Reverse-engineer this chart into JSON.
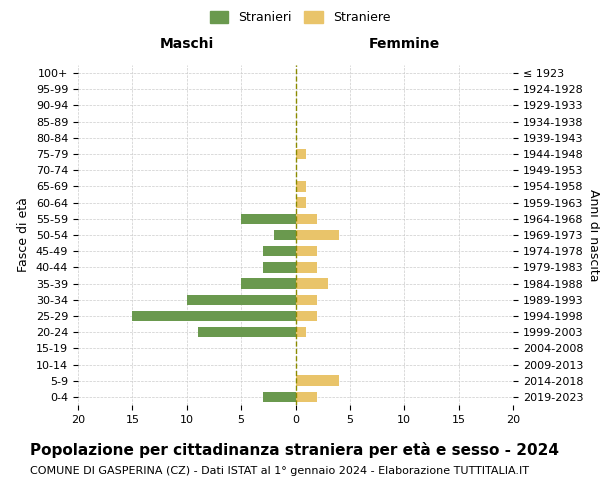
{
  "age_groups": [
    "0-4",
    "5-9",
    "10-14",
    "15-19",
    "20-24",
    "25-29",
    "30-34",
    "35-39",
    "40-44",
    "45-49",
    "50-54",
    "55-59",
    "60-64",
    "65-69",
    "70-74",
    "75-79",
    "80-84",
    "85-89",
    "90-94",
    "95-99",
    "100+"
  ],
  "birth_years": [
    "2019-2023",
    "2014-2018",
    "2009-2013",
    "2004-2008",
    "1999-2003",
    "1994-1998",
    "1989-1993",
    "1984-1988",
    "1979-1983",
    "1974-1978",
    "1969-1973",
    "1964-1968",
    "1959-1963",
    "1954-1958",
    "1949-1953",
    "1944-1948",
    "1939-1943",
    "1934-1938",
    "1929-1933",
    "1924-1928",
    "≤ 1923"
  ],
  "maschi": [
    3,
    0,
    0,
    0,
    9,
    15,
    10,
    5,
    3,
    3,
    2,
    5,
    0,
    0,
    0,
    0,
    0,
    0,
    0,
    0,
    0
  ],
  "femmine": [
    2,
    4,
    0,
    0,
    1,
    2,
    2,
    3,
    2,
    2,
    4,
    2,
    1,
    1,
    0,
    1,
    0,
    0,
    0,
    0,
    0
  ],
  "maschi_color": "#6a994e",
  "femmine_color": "#e9c46a",
  "grid_color": "#cccccc",
  "center_line_color": "#8B8B00",
  "xlim": 20,
  "title": "Popolazione per cittadinanza straniera per età e sesso - 2024",
  "subtitle": "COMUNE DI GASPERINA (CZ) - Dati ISTAT al 1° gennaio 2024 - Elaborazione TUTTITALIA.IT",
  "ylabel_left": "Fasce di età",
  "ylabel_right": "Anni di nascita",
  "legend_stranieri": "Stranieri",
  "legend_straniere": "Straniere",
  "maschi_label": "Maschi",
  "femmine_label": "Femmine",
  "title_fontsize": 11,
  "subtitle_fontsize": 8,
  "label_fontsize": 9,
  "tick_fontsize": 8,
  "background_color": "#ffffff"
}
